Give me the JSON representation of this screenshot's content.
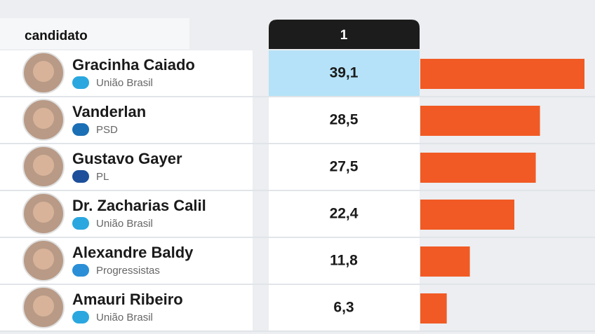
{
  "chart_data": {
    "type": "bar",
    "orientation": "horizontal",
    "header_label": "candidato",
    "column_label": "1",
    "categories": [
      "Gracinha Caiado",
      "Vanderlan",
      "Gustavo Gayer",
      "Dr. Zacharias Calil",
      "Alexandre Baldy",
      "Amauri Ribeiro"
    ],
    "parties": [
      "União Brasil",
      "PSD",
      "PL",
      "União Brasil",
      "Progressistas",
      "União Brasil"
    ],
    "values": [
      39.1,
      28.5,
      27.5,
      22.4,
      11.8,
      6.3
    ],
    "value_labels": [
      "39,1",
      "28,5",
      "27,5",
      "22,4",
      "11,8",
      "6,3"
    ],
    "color": "#f15a24",
    "highlight_color": "#b5e2f8"
  }
}
